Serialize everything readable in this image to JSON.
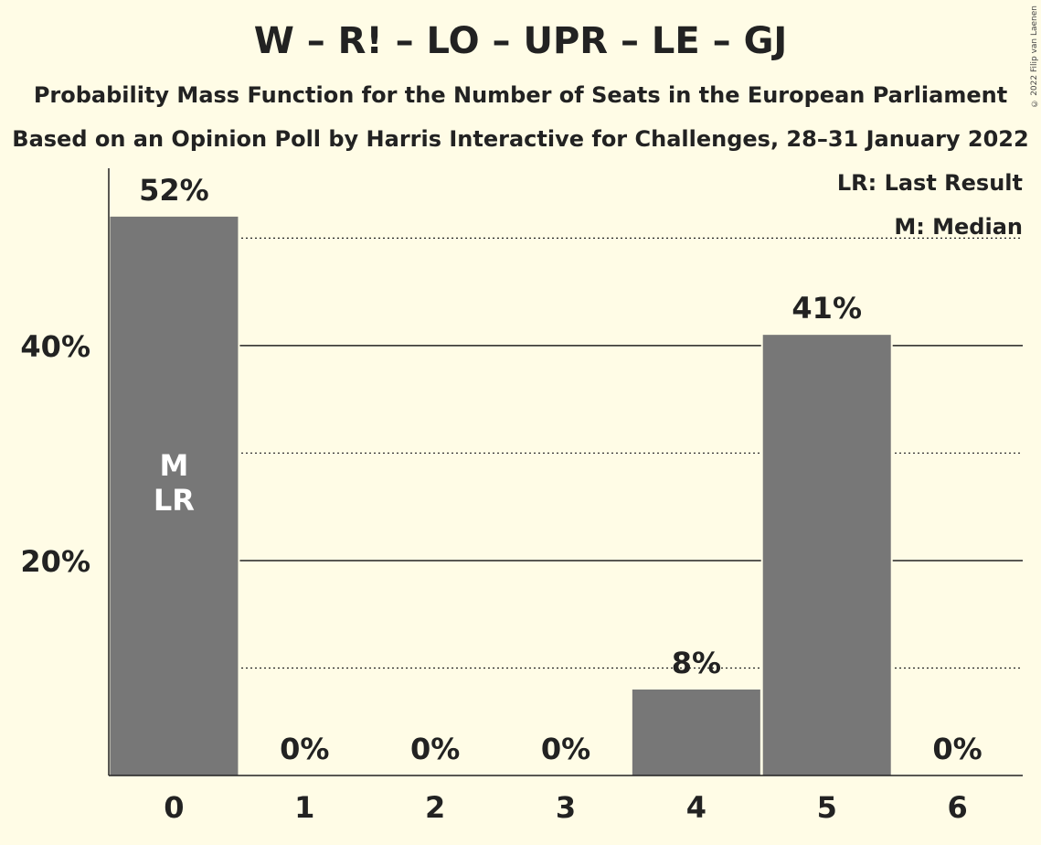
{
  "title": "W – R! – LO – UPR – LE – GJ",
  "subtitle_1": "Probability Mass Function for the Number of Seats in the European Parliament",
  "subtitle_2": "Based on an Opinion Poll by Harris Interactive for Challenges, 28–31 January 2022",
  "copyright": "© 2022 Filip van Laenen",
  "legend": {
    "last_result": "LR: Last Result",
    "median": "M: Median"
  },
  "colors": {
    "background": "#fffce6",
    "bar": "#777777",
    "text": "#222222",
    "bar_text": "#ffffff"
  },
  "chart_data": {
    "type": "bar",
    "categories": [
      "0",
      "1",
      "2",
      "3",
      "4",
      "5",
      "6"
    ],
    "values": [
      52,
      0,
      0,
      0,
      8,
      41,
      0
    ],
    "value_labels": [
      "52%",
      "0%",
      "0%",
      "0%",
      "8%",
      "41%",
      "0%"
    ],
    "ylim": [
      0,
      56.5
    ],
    "yticks": [
      20,
      40
    ],
    "ytick_labels": [
      "20%",
      "40%"
    ],
    "minor_gridlines": [
      10,
      30,
      50
    ],
    "median_index": 0,
    "last_result_index": 0,
    "median_marker": "M",
    "last_result_marker": "LR",
    "xlabel": "",
    "ylabel": ""
  }
}
